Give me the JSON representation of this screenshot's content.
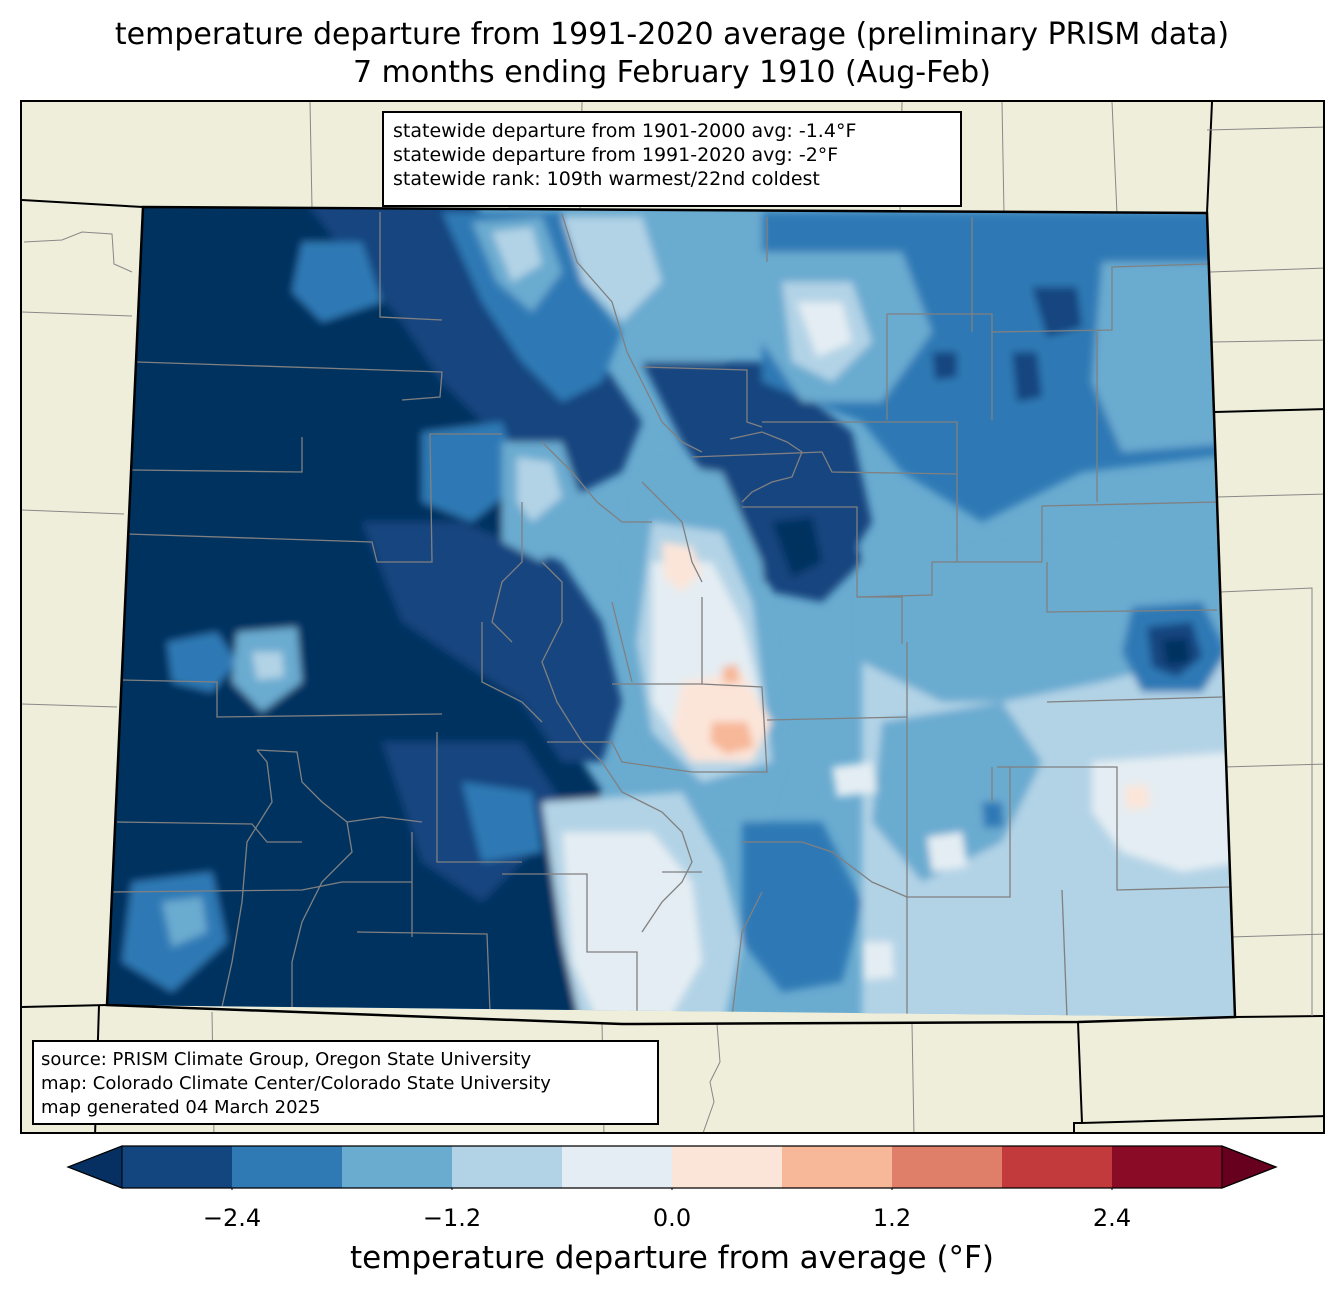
{
  "title": {
    "line1": "temperature departure from 1991-2020 average (preliminary PRISM data)",
    "line2": "7 months ending February 1910 (Aug-Feb)"
  },
  "stats": {
    "line1": "statewide departure from 1901-2000 avg: -1.4°F",
    "line2": "statewide departure from 1991-2020 avg: -2°F",
    "line3": "statewide rank: 109th warmest/22nd coldest"
  },
  "source": {
    "line1": "source: PRISM Climate Group, Oregon State University",
    "line2": "map: Colorado Climate Center/Colorado State University",
    "line3": "map generated 04 March 2025"
  },
  "colorbar": {
    "label": "temperature departure from average (°F)",
    "ticks": [
      "−2.4",
      "−1.2",
      "0.0",
      "1.2",
      "2.4"
    ],
    "tick_values": [
      -2.4,
      -1.2,
      0.0,
      1.2,
      2.4
    ],
    "range": [
      -3.0,
      3.0
    ],
    "levels": [
      -3.0,
      -2.4,
      -1.8,
      -1.2,
      -0.6,
      0.0,
      0.6,
      1.2,
      1.8,
      2.4,
      3.0
    ],
    "colors": [
      "#13457f",
      "#2f79b5",
      "#6aabd0",
      "#b2d3e6",
      "#e4edf3",
      "#fbe5d9",
      "#f7b799",
      "#e07f69",
      "#c23a3b",
      "#890b25"
    ],
    "under_color": "#053061",
    "over_color": "#67001f"
  },
  "colors": {
    "land": "#efeedb",
    "state_border": "#000000",
    "county_border": "#808080"
  }
}
